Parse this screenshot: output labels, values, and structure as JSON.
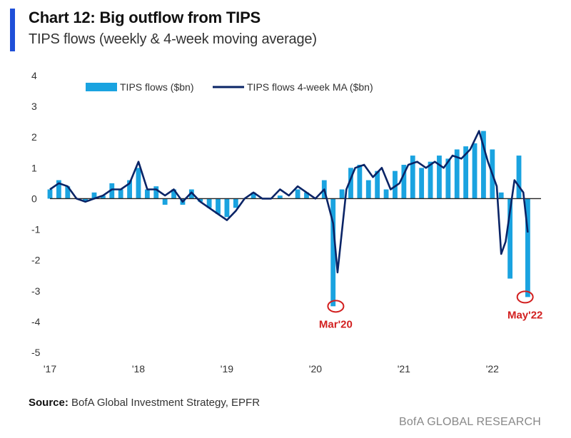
{
  "header": {
    "title": "Chart 12: Big outflow from TIPS",
    "subtitle": "TIPS flows (weekly & 4-week moving average)"
  },
  "footer": {
    "source_label": "Source:",
    "source_text": "BofA Global Investment Strategy, EPFR",
    "brand": "BofA GLOBAL RESEARCH"
  },
  "chart_data": {
    "type": "bar",
    "title": "",
    "xlabel": "",
    "ylabel": "",
    "ylim": [
      -5,
      4
    ],
    "y_ticks": [
      4,
      3,
      2,
      1,
      0,
      -1,
      -2,
      -3,
      -4,
      -5
    ],
    "x_range": [
      2017.0,
      2022.55
    ],
    "x_ticks": [
      {
        "label": "'17",
        "x": 2017.0
      },
      {
        "label": "'18",
        "x": 2018.0
      },
      {
        "label": "'19",
        "x": 2019.0
      },
      {
        "label": "'20",
        "x": 2020.0
      },
      {
        "label": "'21",
        "x": 2021.0
      },
      {
        "label": "'22",
        "x": 2022.0
      }
    ],
    "grid": false,
    "legend_position": "top",
    "colors": {
      "bars": "#1aa3e0",
      "line": "#0a2466",
      "annotation": "#d21f1f"
    },
    "series": [
      {
        "name": "TIPS flows ($bn)",
        "type": "bar",
        "x": [
          2017.0,
          2017.1,
          2017.2,
          2017.3,
          2017.4,
          2017.5,
          2017.6,
          2017.7,
          2017.8,
          2017.9,
          2018.0,
          2018.1,
          2018.2,
          2018.3,
          2018.4,
          2018.5,
          2018.6,
          2018.7,
          2018.8,
          2018.9,
          2019.0,
          2019.1,
          2019.2,
          2019.3,
          2019.4,
          2019.5,
          2019.6,
          2019.7,
          2019.8,
          2019.9,
          2020.0,
          2020.1,
          2020.2,
          2020.3,
          2020.4,
          2020.5,
          2020.6,
          2020.7,
          2020.8,
          2020.9,
          2021.0,
          2021.1,
          2021.2,
          2021.3,
          2021.4,
          2021.5,
          2021.6,
          2021.7,
          2021.8,
          2021.9,
          2022.0,
          2022.1,
          2022.2,
          2022.3,
          2022.4
        ],
        "values": [
          0.3,
          0.6,
          0.4,
          0.0,
          -0.1,
          0.2,
          0.1,
          0.5,
          0.3,
          0.6,
          1.0,
          0.3,
          0.4,
          -0.2,
          0.3,
          -0.2,
          0.3,
          -0.1,
          -0.3,
          -0.5,
          -0.6,
          -0.3,
          0.0,
          0.2,
          0.0,
          0.0,
          0.1,
          0.0,
          0.3,
          0.2,
          0.0,
          0.6,
          -3.5,
          0.3,
          1.0,
          1.1,
          0.6,
          0.9,
          0.3,
          0.9,
          1.1,
          1.4,
          1.0,
          1.2,
          1.4,
          1.3,
          1.6,
          1.7,
          1.8,
          2.2,
          1.6,
          0.2,
          -2.6,
          1.4,
          -3.2
        ]
      },
      {
        "name": "TIPS flows 4-week MA ($bn)",
        "type": "line",
        "x": [
          2017.0,
          2017.1,
          2017.2,
          2017.3,
          2017.4,
          2017.5,
          2017.6,
          2017.7,
          2017.8,
          2017.9,
          2018.0,
          2018.1,
          2018.2,
          2018.3,
          2018.4,
          2018.5,
          2018.6,
          2018.7,
          2018.8,
          2018.9,
          2019.0,
          2019.1,
          2019.2,
          2019.3,
          2019.4,
          2019.5,
          2019.6,
          2019.7,
          2019.8,
          2019.9,
          2020.0,
          2020.1,
          2020.2,
          2020.25,
          2020.35,
          2020.45,
          2020.55,
          2020.65,
          2020.75,
          2020.85,
          2020.95,
          2021.05,
          2021.15,
          2021.25,
          2021.35,
          2021.45,
          2021.55,
          2021.65,
          2021.75,
          2021.85,
          2021.95,
          2022.05,
          2022.1,
          2022.15,
          2022.25,
          2022.35,
          2022.4
        ],
        "values": [
          0.3,
          0.5,
          0.4,
          0.0,
          -0.1,
          0.0,
          0.1,
          0.3,
          0.3,
          0.5,
          1.2,
          0.3,
          0.3,
          0.1,
          0.3,
          -0.1,
          0.2,
          -0.1,
          -0.3,
          -0.5,
          -0.7,
          -0.4,
          0.0,
          0.2,
          0.0,
          0.0,
          0.3,
          0.1,
          0.4,
          0.2,
          0.0,
          0.3,
          -0.8,
          -2.4,
          0.3,
          1.0,
          1.1,
          0.7,
          1.0,
          0.3,
          0.5,
          1.1,
          1.2,
          1.0,
          1.2,
          1.0,
          1.4,
          1.3,
          1.6,
          2.2,
          1.2,
          0.4,
          -1.8,
          -1.4,
          0.6,
          0.2,
          -1.1
        ]
      }
    ],
    "annotations": [
      {
        "label": "Mar'20",
        "x": 2020.23,
        "y": -3.5
      },
      {
        "label": "May'22",
        "x": 2022.37,
        "y": -3.2
      }
    ]
  }
}
